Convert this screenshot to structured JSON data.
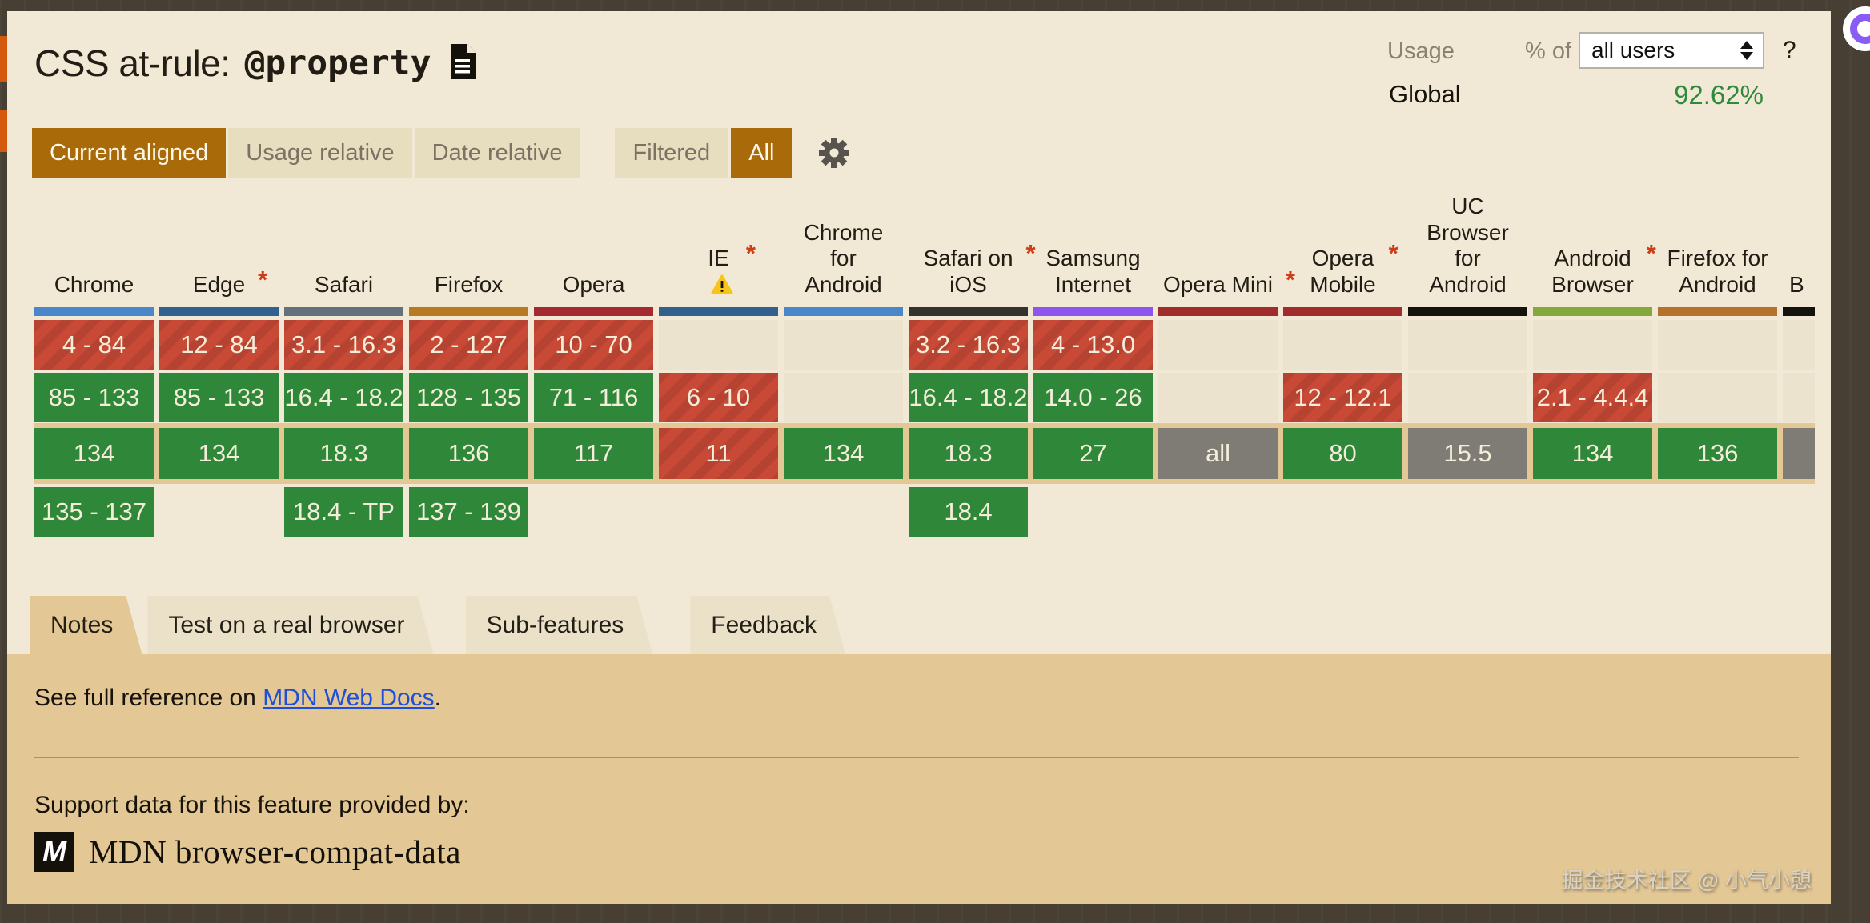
{
  "header": {
    "title_prefix": "CSS at-rule:",
    "title_code": "@property",
    "usage_label": "Usage",
    "percent_of_label": "% of",
    "usage_select_value": "all users",
    "help_label": "?",
    "global_label": "Global",
    "global_value": "92.62%"
  },
  "toolbar": {
    "view_buttons": [
      {
        "label": "Current aligned",
        "active": true
      },
      {
        "label": "Usage relative",
        "active": false
      },
      {
        "label": "Date relative",
        "active": false
      }
    ],
    "filter_buttons": [
      {
        "label": "Filtered",
        "active": false
      },
      {
        "label": "All",
        "active": true
      }
    ]
  },
  "asterisk_glyph": "*",
  "browsers": [
    {
      "id": "chrome",
      "lines": [
        "Chrome"
      ],
      "asterisk": false,
      "warning": false,
      "strip_color": "#4a86c8",
      "cells": [
        {
          "text": "4 - 84",
          "status": "red"
        },
        {
          "text": "85 - 133",
          "status": "green"
        },
        {
          "text": "134",
          "status": "green"
        },
        {
          "text": "135 - 137",
          "status": "green"
        }
      ]
    },
    {
      "id": "edge",
      "lines": [
        "Edge"
      ],
      "asterisk": true,
      "warning": false,
      "strip_color": "#33618e",
      "cells": [
        {
          "text": "12 - 84",
          "status": "red"
        },
        {
          "text": "85 - 133",
          "status": "green"
        },
        {
          "text": "134",
          "status": "green"
        },
        {
          "text": "",
          "status": "none"
        }
      ]
    },
    {
      "id": "safari",
      "lines": [
        "Safari"
      ],
      "asterisk": false,
      "warning": false,
      "strip_color": "#64707a",
      "cells": [
        {
          "text": "3.1 - 16.3",
          "status": "red"
        },
        {
          "text": "16.4 - 18.2",
          "status": "green"
        },
        {
          "text": "18.3",
          "status": "green"
        },
        {
          "text": "18.4 - TP",
          "status": "green"
        }
      ]
    },
    {
      "id": "firefox",
      "lines": [
        "Firefox"
      ],
      "asterisk": false,
      "warning": false,
      "strip_color": "#b87a22",
      "cells": [
        {
          "text": "2 - 127",
          "status": "red"
        },
        {
          "text": "128 - 135",
          "status": "green"
        },
        {
          "text": "136",
          "status": "green"
        },
        {
          "text": "137 - 139",
          "status": "green"
        }
      ]
    },
    {
      "id": "opera",
      "lines": [
        "Opera"
      ],
      "asterisk": false,
      "warning": false,
      "strip_color": "#a42a31",
      "cells": [
        {
          "text": "10 - 70",
          "status": "red"
        },
        {
          "text": "71 - 116",
          "status": "green"
        },
        {
          "text": "117",
          "status": "green"
        },
        {
          "text": "",
          "status": "none"
        }
      ]
    },
    {
      "id": "ie",
      "lines": [
        "IE"
      ],
      "asterisk": true,
      "warning": true,
      "strip_color": "#33618e",
      "cells": [
        {
          "text": "",
          "status": "empty"
        },
        {
          "text": "6 - 10",
          "status": "red"
        },
        {
          "text": "11",
          "status": "red"
        },
        {
          "text": "",
          "status": "none"
        }
      ]
    },
    {
      "id": "chrome-android",
      "lines": [
        "Chrome",
        "for",
        "Android"
      ],
      "asterisk": false,
      "warning": false,
      "strip_color": "#4a86c8",
      "cells": [
        {
          "text": "",
          "status": "empty"
        },
        {
          "text": "",
          "status": "empty"
        },
        {
          "text": "134",
          "status": "green"
        },
        {
          "text": "",
          "status": "none"
        }
      ]
    },
    {
      "id": "safari-ios",
      "lines": [
        "Safari on",
        "iOS"
      ],
      "asterisk": true,
      "warning": false,
      "strip_color": "#33322d",
      "cells": [
        {
          "text": "3.2 - 16.3",
          "status": "red"
        },
        {
          "text": "16.4 - 18.2",
          "status": "green"
        },
        {
          "text": "18.3",
          "status": "green"
        },
        {
          "text": "18.4",
          "status": "green"
        }
      ]
    },
    {
      "id": "samsung",
      "lines": [
        "Samsung",
        "Internet"
      ],
      "asterisk": false,
      "warning": false,
      "strip_color": "#8d55ec",
      "cells": [
        {
          "text": "4 - 13.0",
          "status": "red"
        },
        {
          "text": "14.0 - 26",
          "status": "green"
        },
        {
          "text": "27",
          "status": "green"
        },
        {
          "text": "",
          "status": "none"
        }
      ]
    },
    {
      "id": "opera-mini",
      "lines": [
        "Opera Mini"
      ],
      "asterisk": true,
      "warning": false,
      "strip_color": "#a12c2c",
      "cells": [
        {
          "text": "",
          "status": "empty"
        },
        {
          "text": "",
          "status": "empty"
        },
        {
          "text": "all",
          "status": "gray"
        },
        {
          "text": "",
          "status": "none"
        }
      ]
    },
    {
      "id": "opera-mobile",
      "lines": [
        "Opera",
        "Mobile"
      ],
      "asterisk": true,
      "warning": false,
      "strip_color": "#a12c2c",
      "cells": [
        {
          "text": "",
          "status": "empty"
        },
        {
          "text": "12 - 12.1",
          "status": "red"
        },
        {
          "text": "80",
          "status": "green"
        },
        {
          "text": "",
          "status": "none"
        }
      ]
    },
    {
      "id": "uc-browser",
      "lines": [
        "UC",
        "Browser",
        "for",
        "Android"
      ],
      "asterisk": false,
      "warning": false,
      "strip_color": "#15130e",
      "cells": [
        {
          "text": "",
          "status": "empty"
        },
        {
          "text": "",
          "status": "empty"
        },
        {
          "text": "15.5",
          "status": "gray"
        },
        {
          "text": "",
          "status": "none"
        }
      ]
    },
    {
      "id": "android-browser",
      "lines": [
        "Android",
        "Browser"
      ],
      "asterisk": true,
      "warning": false,
      "strip_color": "#84a83c",
      "cells": [
        {
          "text": "",
          "status": "empty"
        },
        {
          "text": "2.1 - 4.4.4",
          "status": "red"
        },
        {
          "text": "134",
          "status": "green"
        },
        {
          "text": "",
          "status": "none"
        }
      ]
    },
    {
      "id": "firefox-android",
      "lines": [
        "Firefox for",
        "Android"
      ],
      "asterisk": false,
      "warning": false,
      "strip_color": "#b5722a",
      "cells": [
        {
          "text": "",
          "status": "empty"
        },
        {
          "text": "",
          "status": "empty"
        },
        {
          "text": "136",
          "status": "green"
        },
        {
          "text": "",
          "status": "none"
        }
      ]
    },
    {
      "id": "baidu",
      "lines": [
        "B"
      ],
      "asterisk": false,
      "warning": false,
      "strip_color": "#15130e",
      "cells": [
        {
          "text": "",
          "status": "empty"
        },
        {
          "text": "",
          "status": "empty"
        },
        {
          "text": "",
          "status": "gray"
        },
        {
          "text": "",
          "status": "none"
        }
      ]
    }
  ],
  "tabs": [
    {
      "label": "Notes",
      "active": true
    },
    {
      "label": "Test on a real browser",
      "active": false
    },
    {
      "label": "Sub-features",
      "active": false
    },
    {
      "label": "Feedback",
      "active": false
    }
  ],
  "notes_panel": {
    "see_reference_prefix": "See full reference on ",
    "link_text": "MDN Web Docs",
    "see_reference_suffix": ".",
    "support_text": "Support data for this feature provided by:",
    "mdn_logo_letter": "M",
    "mdn_source": "MDN browser-compat-data"
  },
  "watermark": "掘金技术社区 @ 小气小憩",
  "colors": {
    "accent_active": "#a96a0a",
    "supported_green": "#2f8839",
    "unsupported_red": "#c84936",
    "partial_gray": "#7f7c76",
    "current_row_band": "#e3c795",
    "panel_background": "#f1e9d6",
    "notes_background": "#e3c795",
    "link_blue": "#1f4fd8",
    "usage_value_green": "#2f8a3a",
    "asterisk_red": "#cd3d17"
  }
}
